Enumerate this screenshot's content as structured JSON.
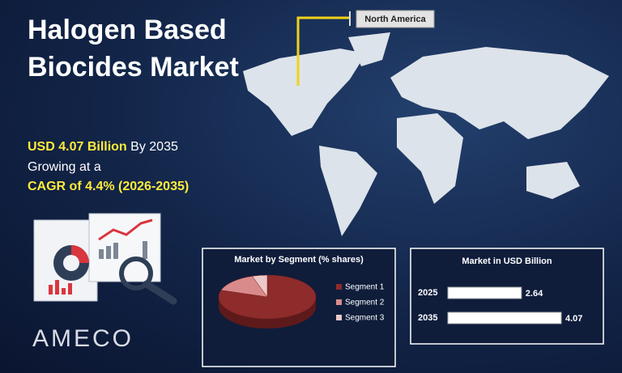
{
  "title": "Halogen Based Biocides Market",
  "highlight_value": "USD 4.07 Billion",
  "highlight_suffix": "By 2035",
  "growth_intro": "Growing at a",
  "growth_rate": "CAGR of 4.4% (2026-2035)",
  "map_callout": "North America",
  "brand": "AMECO",
  "chart_data": [
    {
      "type": "pie",
      "title": "Market by Segment  (% shares)",
      "categories": [
        "Segment 1",
        "Segment 2",
        "Segment 3"
      ],
      "values": [
        80,
        15,
        5
      ],
      "colors": [
        "#8e2b2b",
        "#d98b8b",
        "#ecc9c9"
      ]
    },
    {
      "type": "bar",
      "orientation": "horizontal",
      "title": "Market in USD Billion",
      "categories": [
        "2025",
        "2035"
      ],
      "values": [
        2.64,
        4.07
      ],
      "color": "#ffffff"
    }
  ]
}
